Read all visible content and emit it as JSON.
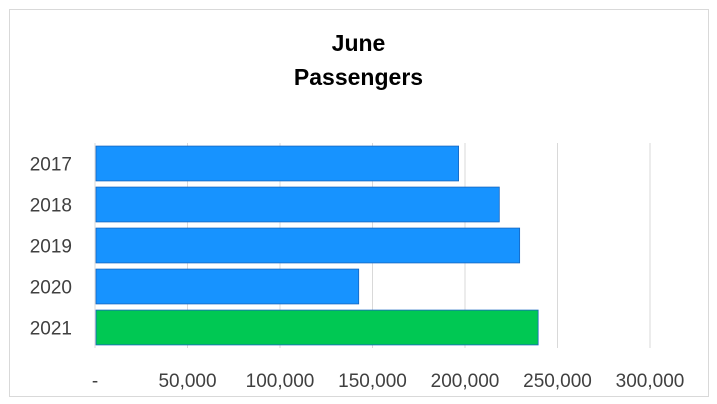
{
  "chart_data": {
    "type": "bar",
    "orientation": "horizontal",
    "title_lines": [
      "June",
      "Passengers"
    ],
    "categories": [
      "2017",
      "2018",
      "2019",
      "2020",
      "2021"
    ],
    "values": [
      196000,
      218000,
      229000,
      142000,
      239000
    ],
    "bar_colors": [
      "#1793FF",
      "#1793FF",
      "#1793FF",
      "#1793FF",
      "#00C853"
    ],
    "xlim": [
      0,
      300000
    ],
    "x_tick_values": [
      0,
      50000,
      100000,
      150000,
      200000,
      250000,
      300000
    ],
    "x_tick_labels": [
      "-",
      "50,000",
      "100,000",
      "150,000",
      "200,000",
      "250,000",
      "300,000"
    ],
    "grid": "vertical",
    "legend": "none"
  }
}
